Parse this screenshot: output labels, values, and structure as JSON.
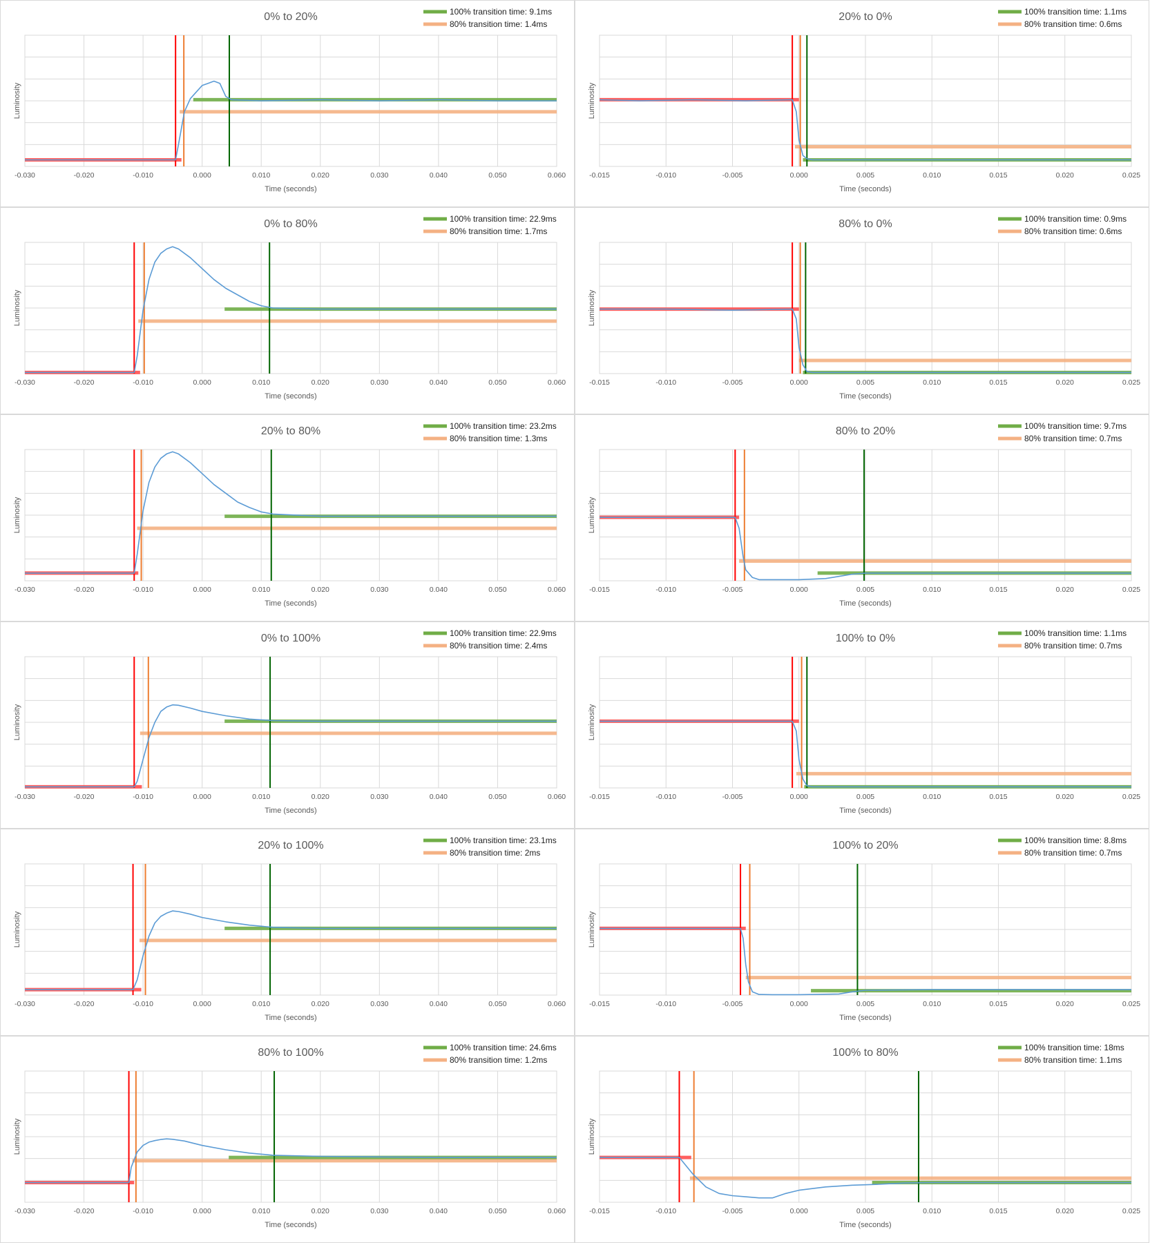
{
  "labels": {
    "xlabel": "Time (seconds)",
    "ylabel": "Luminosity"
  },
  "colors": {
    "signal": "#5b9bd5",
    "start": "#ff0000",
    "end80": "#ed7d31",
    "end100": "#006400",
    "band_green": "#70ad47",
    "band_orange": "#f4b183",
    "band_red": "#ff5050",
    "grid": "#d9d9d9"
  },
  "chart_data": [
    {
      "type": "line",
      "title": "0% to 20%",
      "legend": [
        "100% transition time: 9.1ms",
        "80% transition time: 1.4ms"
      ],
      "xlim": [
        -0.03,
        0.06
      ],
      "xticks": [
        "-0.030",
        "-0.020",
        "-0.010",
        "0.000",
        "0.010",
        "0.020",
        "0.030",
        "0.040",
        "0.050",
        "0.060"
      ],
      "ylim": [
        0,
        6
      ],
      "markers": {
        "start": -0.0045,
        "end80": -0.0031,
        "end100": 0.0046
      },
      "bands": {
        "red": {
          "x": [
            -0.03,
            -0.0035
          ],
          "y": 0.3
        },
        "orange": {
          "x": [
            -0.0038,
            0.06
          ],
          "y": 2.5
        },
        "green": {
          "x": [
            -0.0015,
            0.06
          ],
          "y": 3.05
        }
      },
      "x": [
        -0.03,
        -0.0045,
        -0.004,
        -0.003,
        -0.002,
        -0.001,
        0.0,
        0.001,
        0.002,
        0.003,
        0.004,
        0.005,
        0.01,
        0.02,
        0.03,
        0.04,
        0.05,
        0.06
      ],
      "y": [
        0.3,
        0.3,
        1.0,
        2.5,
        3.1,
        3.4,
        3.7,
        3.8,
        3.9,
        3.8,
        3.2,
        3.05,
        3.0,
        3.05,
        3.0,
        3.05,
        3.0,
        3.0
      ]
    },
    {
      "type": "line",
      "title": "20% to 0%",
      "legend": [
        "100% transition time: 1.1ms",
        "80% transition time: 0.6ms"
      ],
      "xlim": [
        -0.015,
        0.025
      ],
      "xticks": [
        "-0.015",
        "-0.010",
        "-0.005",
        "0.000",
        "0.005",
        "0.010",
        "0.015",
        "0.020",
        "0.025"
      ],
      "ylim": [
        0,
        6
      ],
      "markers": {
        "start": -0.0005,
        "end80": 0.0001,
        "end100": 0.0006
      },
      "bands": {
        "red": {
          "x": [
            -0.015,
            0.0
          ],
          "y": 3.05
        },
        "orange": {
          "x": [
            -0.0003,
            0.025
          ],
          "y": 0.9
        },
        "green": {
          "x": [
            0.0003,
            0.025
          ],
          "y": 0.3
        }
      },
      "x": [
        -0.015,
        -0.012,
        -0.008,
        -0.004,
        -0.0005,
        -0.0002,
        0.0,
        0.0003,
        0.0006,
        0.001,
        0.01,
        0.025
      ],
      "y": [
        3.05,
        3.0,
        3.05,
        3.0,
        3.05,
        2.5,
        1.2,
        0.5,
        0.35,
        0.3,
        0.3,
        0.3
      ]
    },
    {
      "type": "line",
      "title": "0% to 80%",
      "legend": [
        "100% transition time: 22.9ms",
        "80% transition time: 1.7ms"
      ],
      "xlim": [
        -0.03,
        0.06
      ],
      "xticks": [
        "-0.030",
        "-0.020",
        "-0.010",
        "0.000",
        "0.010",
        "0.020",
        "0.030",
        "0.040",
        "0.050",
        "0.060"
      ],
      "ylim": [
        0,
        6
      ],
      "markers": {
        "start": -0.0115,
        "end80": -0.0098,
        "end100": 0.0114
      },
      "bands": {
        "red": {
          "x": [
            -0.03,
            -0.0105
          ],
          "y": 0.05
        },
        "orange": {
          "x": [
            -0.0108,
            0.06
          ],
          "y": 2.4
        },
        "green": {
          "x": [
            0.0038,
            0.06
          ],
          "y": 2.95
        }
      },
      "x": [
        -0.03,
        -0.0115,
        -0.011,
        -0.01,
        -0.009,
        -0.008,
        -0.007,
        -0.006,
        -0.005,
        -0.004,
        -0.002,
        0.0,
        0.002,
        0.004,
        0.006,
        0.008,
        0.01,
        0.012,
        0.02,
        0.04,
        0.06
      ],
      "y": [
        0.05,
        0.05,
        0.8,
        2.9,
        4.3,
        5.1,
        5.5,
        5.7,
        5.8,
        5.7,
        5.3,
        4.8,
        4.3,
        3.9,
        3.6,
        3.3,
        3.1,
        3.0,
        2.95,
        2.95,
        2.95
      ]
    },
    {
      "type": "line",
      "title": "80% to 0%",
      "legend": [
        "100% transition time: 0.9ms",
        "80% transition time: 0.6ms"
      ],
      "xlim": [
        -0.015,
        0.025
      ],
      "xticks": [
        "-0.015",
        "-0.010",
        "-0.005",
        "0.000",
        "0.005",
        "0.010",
        "0.015",
        "0.020",
        "0.025"
      ],
      "ylim": [
        0,
        6
      ],
      "markers": {
        "start": -0.0005,
        "end80": 0.0001,
        "end100": 0.0005
      },
      "bands": {
        "red": {
          "x": [
            -0.015,
            0.0
          ],
          "y": 2.95
        },
        "orange": {
          "x": [
            0.0,
            0.025
          ],
          "y": 0.6
        },
        "green": {
          "x": [
            0.0003,
            0.025
          ],
          "y": 0.05
        }
      },
      "x": [
        -0.015,
        -0.01,
        -0.005,
        -0.0005,
        -0.0002,
        0.0,
        0.0003,
        0.0006,
        0.001,
        0.025
      ],
      "y": [
        2.95,
        2.95,
        2.9,
        2.95,
        2.5,
        1.2,
        0.4,
        0.1,
        0.05,
        0.05
      ]
    },
    {
      "type": "line",
      "title": "20% to 80%",
      "legend": [
        "100% transition time: 23.2ms",
        "80% transition time: 1.3ms"
      ],
      "xlim": [
        -0.03,
        0.06
      ],
      "xticks": [
        "-0.030",
        "-0.020",
        "-0.010",
        "0.000",
        "0.010",
        "0.020",
        "0.030",
        "0.040",
        "0.050",
        "0.060"
      ],
      "ylim": [
        0,
        6
      ],
      "markers": {
        "start": -0.0115,
        "end80": -0.0103,
        "end100": 0.0117
      },
      "bands": {
        "red": {
          "x": [
            -0.03,
            -0.0108
          ],
          "y": 0.35
        },
        "orange": {
          "x": [
            -0.011,
            0.06
          ],
          "y": 2.4
        },
        "green": {
          "x": [
            0.0038,
            0.06
          ],
          "y": 2.95
        }
      },
      "x": [
        -0.03,
        -0.0115,
        -0.011,
        -0.01,
        -0.009,
        -0.008,
        -0.007,
        -0.006,
        -0.005,
        -0.004,
        -0.002,
        0.0,
        0.002,
        0.004,
        0.006,
        0.008,
        0.01,
        0.012,
        0.02,
        0.04,
        0.06
      ],
      "y": [
        0.35,
        0.35,
        1.2,
        3.2,
        4.5,
        5.2,
        5.6,
        5.8,
        5.9,
        5.8,
        5.4,
        4.9,
        4.4,
        4.0,
        3.6,
        3.35,
        3.15,
        3.05,
        2.95,
        2.95,
        2.95
      ]
    },
    {
      "type": "line",
      "title": "80% to 20%",
      "legend": [
        "100% transition time: 9.7ms",
        "80% transition time: 0.7ms"
      ],
      "xlim": [
        -0.015,
        0.025
      ],
      "xticks": [
        "-0.015",
        "-0.010",
        "-0.005",
        "0.000",
        "0.005",
        "0.010",
        "0.015",
        "0.020",
        "0.025"
      ],
      "ylim": [
        0,
        6
      ],
      "markers": {
        "start": -0.0048,
        "end80": -0.0041,
        "end100": 0.0049
      },
      "bands": {
        "red": {
          "x": [
            -0.015,
            -0.0045
          ],
          "y": 2.9
        },
        "orange": {
          "x": [
            -0.0045,
            0.025
          ],
          "y": 0.9
        },
        "green": {
          "x": [
            0.0014,
            0.025
          ],
          "y": 0.35
        }
      },
      "x": [
        -0.015,
        -0.01,
        -0.0048,
        -0.0045,
        -0.0042,
        -0.004,
        -0.0035,
        -0.003,
        -0.002,
        0.0,
        0.002,
        0.003,
        0.004,
        0.005,
        0.01,
        0.025
      ],
      "y": [
        2.9,
        2.9,
        2.9,
        2.4,
        1.1,
        0.5,
        0.15,
        0.05,
        0.05,
        0.05,
        0.1,
        0.2,
        0.3,
        0.35,
        0.35,
        0.35
      ]
    },
    {
      "type": "line",
      "title": "0% to 100%",
      "legend": [
        "100% transition time: 22.9ms",
        "80% transition time: 2.4ms"
      ],
      "xlim": [
        -0.03,
        0.06
      ],
      "xticks": [
        "-0.030",
        "-0.020",
        "-0.010",
        "0.000",
        "0.010",
        "0.020",
        "0.030",
        "0.040",
        "0.050",
        "0.060"
      ],
      "ylim": [
        0,
        6
      ],
      "markers": {
        "start": -0.0115,
        "end80": -0.0091,
        "end100": 0.0115
      },
      "bands": {
        "red": {
          "x": [
            -0.03,
            -0.0102
          ],
          "y": 0.05
        },
        "orange": {
          "x": [
            -0.0105,
            0.06
          ],
          "y": 2.5
        },
        "green": {
          "x": [
            0.0038,
            0.06
          ],
          "y": 3.05
        }
      },
      "x": [
        -0.03,
        -0.0115,
        -0.011,
        -0.01,
        -0.009,
        -0.008,
        -0.007,
        -0.006,
        -0.005,
        -0.004,
        -0.002,
        0.0,
        0.004,
        0.008,
        0.012,
        0.02,
        0.04,
        0.06
      ],
      "y": [
        0.05,
        0.05,
        0.3,
        1.3,
        2.3,
        3.0,
        3.5,
        3.7,
        3.8,
        3.78,
        3.65,
        3.5,
        3.3,
        3.15,
        3.08,
        3.05,
        3.05,
        3.05
      ]
    },
    {
      "type": "line",
      "title": "100% to 0%",
      "legend": [
        "100% transition time: 1.1ms",
        "80% transition time: 0.7ms"
      ],
      "xlim": [
        -0.015,
        0.025
      ],
      "xticks": [
        "-0.015",
        "-0.010",
        "-0.005",
        "0.000",
        "0.005",
        "0.010",
        "0.015",
        "0.020",
        "0.025"
      ],
      "ylim": [
        0,
        6
      ],
      "markers": {
        "start": -0.0005,
        "end80": 0.0002,
        "end100": 0.0006
      },
      "bands": {
        "red": {
          "x": [
            -0.015,
            0.0
          ],
          "y": 3.05
        },
        "orange": {
          "x": [
            -0.0002,
            0.025
          ],
          "y": 0.65
        },
        "green": {
          "x": [
            0.0004,
            0.025
          ],
          "y": 0.05
        }
      },
      "x": [
        -0.015,
        -0.01,
        -0.005,
        -0.0005,
        -0.0002,
        0.0,
        0.0003,
        0.0006,
        0.001,
        0.025
      ],
      "y": [
        3.05,
        3.05,
        3.05,
        3.05,
        2.6,
        1.3,
        0.4,
        0.1,
        0.05,
        0.05
      ]
    },
    {
      "type": "line",
      "title": "20% to 100%",
      "legend": [
        "100% transition time: 23.1ms",
        "80% transition time: 2ms"
      ],
      "xlim": [
        -0.03,
        0.06
      ],
      "xticks": [
        "-0.030",
        "-0.020",
        "-0.010",
        "0.000",
        "0.010",
        "0.020",
        "0.030",
        "0.040",
        "0.050",
        "0.060"
      ],
      "ylim": [
        0,
        6
      ],
      "markers": {
        "start": -0.0117,
        "end80": -0.0096,
        "end100": 0.0115
      },
      "bands": {
        "red": {
          "x": [
            -0.03,
            -0.0103
          ],
          "y": 0.25
        },
        "orange": {
          "x": [
            -0.0106,
            0.06
          ],
          "y": 2.5
        },
        "green": {
          "x": [
            0.0038,
            0.06
          ],
          "y": 3.05
        }
      },
      "x": [
        -0.03,
        -0.0117,
        -0.011,
        -0.01,
        -0.009,
        -0.008,
        -0.007,
        -0.006,
        -0.005,
        -0.004,
        -0.002,
        0.0,
        0.004,
        0.008,
        0.012,
        0.02,
        0.04,
        0.06
      ],
      "y": [
        0.25,
        0.25,
        0.7,
        1.8,
        2.7,
        3.3,
        3.6,
        3.75,
        3.85,
        3.82,
        3.7,
        3.55,
        3.35,
        3.2,
        3.1,
        3.05,
        3.05,
        3.05
      ]
    },
    {
      "type": "line",
      "title": "100% to 20%",
      "legend": [
        "100% transition time: 8.8ms",
        "80% transition time: 0.7ms"
      ],
      "xlim": [
        -0.015,
        0.025
      ],
      "xticks": [
        "-0.015",
        "-0.010",
        "-0.005",
        "0.000",
        "0.005",
        "0.010",
        "0.015",
        "0.020",
        "0.025"
      ],
      "ylim": [
        0,
        6
      ],
      "markers": {
        "start": -0.0044,
        "end80": -0.0037,
        "end100": 0.0044
      },
      "bands": {
        "red": {
          "x": [
            -0.015,
            -0.004
          ],
          "y": 3.05
        },
        "orange": {
          "x": [
            -0.004,
            0.025
          ],
          "y": 0.8
        },
        "green": {
          "x": [
            0.0009,
            0.025
          ],
          "y": 0.2
        }
      },
      "x": [
        -0.015,
        -0.01,
        -0.0044,
        -0.0042,
        -0.004,
        -0.0038,
        -0.0035,
        -0.003,
        -0.002,
        0.0,
        0.003,
        0.004,
        0.005,
        0.01,
        0.025
      ],
      "y": [
        3.05,
        3.05,
        3.05,
        2.6,
        1.4,
        0.6,
        0.15,
        0.03,
        0.02,
        0.02,
        0.05,
        0.15,
        0.22,
        0.25,
        0.25
      ]
    },
    {
      "type": "line",
      "title": "80% to 100%",
      "legend": [
        "100% transition time: 24.6ms",
        "80% transition time: 1.2ms"
      ],
      "xlim": [
        -0.03,
        0.06
      ],
      "xticks": [
        "-0.030",
        "-0.020",
        "-0.010",
        "0.000",
        "0.010",
        "0.020",
        "0.030",
        "0.040",
        "0.050",
        "0.060"
      ],
      "ylim": [
        0,
        6
      ],
      "markers": {
        "start": -0.0124,
        "end80": -0.0112,
        "end100": 0.0122
      },
      "bands": {
        "red": {
          "x": [
            -0.03,
            -0.0115
          ],
          "y": 0.9
        },
        "orange": {
          "x": [
            -0.0118,
            0.06
          ],
          "y": 1.9
        },
        "green": {
          "x": [
            0.0045,
            0.06
          ],
          "y": 2.05
        }
      },
      "x": [
        -0.03,
        -0.0124,
        -0.012,
        -0.011,
        -0.01,
        -0.009,
        -0.008,
        -0.007,
        -0.006,
        -0.005,
        -0.003,
        0.0,
        0.004,
        0.008,
        0.012,
        0.02,
        0.04,
        0.06
      ],
      "y": [
        0.9,
        0.9,
        1.6,
        2.3,
        2.6,
        2.75,
        2.82,
        2.87,
        2.9,
        2.88,
        2.8,
        2.6,
        2.4,
        2.25,
        2.15,
        2.1,
        2.05,
        2.05
      ]
    },
    {
      "type": "line",
      "title": "100% to 80%",
      "legend": [
        "100% transition time: 18ms",
        "80% transition time: 1.1ms"
      ],
      "xlim": [
        -0.015,
        0.025
      ],
      "xticks": [
        "-0.015",
        "-0.010",
        "-0.005",
        "0.000",
        "0.005",
        "0.010",
        "0.015",
        "0.020",
        "0.025"
      ],
      "ylim": [
        0,
        6
      ],
      "markers": {
        "start": -0.009,
        "end80": -0.0079,
        "end100": 0.009
      },
      "bands": {
        "red": {
          "x": [
            -0.015,
            -0.0081
          ],
          "y": 2.05
        },
        "orange": {
          "x": [
            -0.0082,
            0.025
          ],
          "y": 1.1
        },
        "green": {
          "x": [
            0.0055,
            0.025
          ],
          "y": 0.9
        }
      },
      "x": [
        -0.015,
        -0.01,
        -0.009,
        -0.008,
        -0.007,
        -0.006,
        -0.005,
        -0.004,
        -0.003,
        -0.002,
        -0.001,
        0.0,
        0.002,
        0.004,
        0.006,
        0.008,
        0.01,
        0.015,
        0.025
      ],
      "y": [
        2.05,
        2.05,
        2.05,
        1.3,
        0.7,
        0.4,
        0.3,
        0.25,
        0.2,
        0.2,
        0.4,
        0.55,
        0.7,
        0.78,
        0.82,
        0.88,
        0.9,
        0.9,
        0.9
      ]
    }
  ]
}
